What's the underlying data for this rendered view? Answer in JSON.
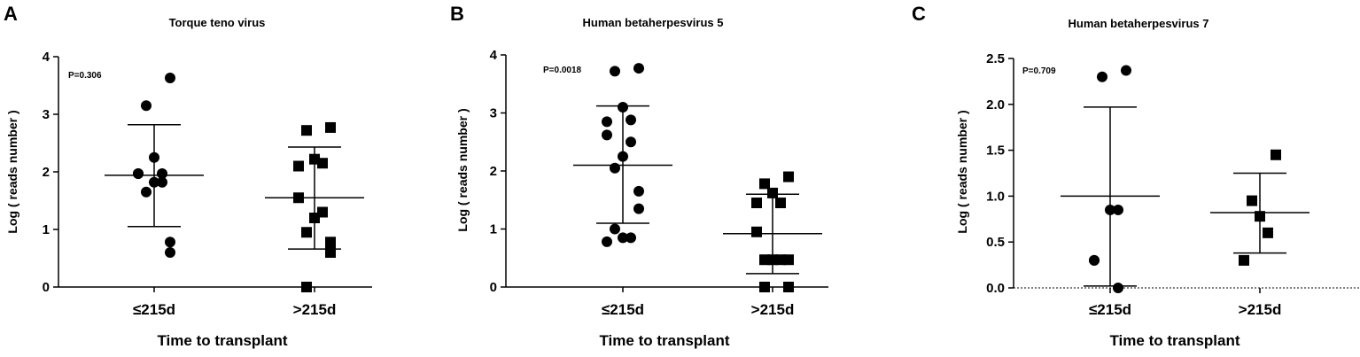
{
  "chart_data": [
    {
      "type": "scatter",
      "panel_letter": "A",
      "title": "Torque teno virus",
      "ylabel": "Log ( reads number )",
      "xlabel": "Time to transplant",
      "ylim": [
        0,
        4
      ],
      "yticks": [
        "0",
        "1",
        "2",
        "3",
        "4"
      ],
      "categories": [
        "≤215d",
        ">215d"
      ],
      "annotation": "P=0.306",
      "series": [
        {
          "marker": "circle",
          "values": [
            3.63,
            3.15,
            2.25,
            1.97,
            1.97,
            1.97,
            1.82,
            1.82,
            1.65,
            0.78,
            0.6
          ],
          "mean": 1.94,
          "sd_upper": 2.82,
          "sd_lower": 1.05
        },
        {
          "marker": "square",
          "values": [
            2.77,
            2.72,
            2.22,
            2.15,
            2.1,
            1.55,
            1.3,
            1.2,
            0.95,
            0.78,
            0.6,
            0.0
          ],
          "mean": 1.55,
          "sd_upper": 2.43,
          "sd_lower": 0.66
        }
      ]
    },
    {
      "type": "scatter",
      "panel_letter": "B",
      "title": "Human betaherpesvirus 5",
      "ylabel": "Log ( reads number )",
      "xlabel": "Time to transplant",
      "ylim": [
        0,
        4
      ],
      "yticks": [
        "0",
        "1",
        "2",
        "3",
        "4"
      ],
      "categories": [
        "≤215d",
        ">215d"
      ],
      "annotation": "P=0.0018",
      "series": [
        {
          "marker": "circle",
          "values": [
            3.77,
            3.72,
            3.1,
            2.88,
            2.85,
            2.62,
            2.5,
            2.25,
            2.05,
            1.65,
            1.35,
            1.0,
            0.85,
            0.85,
            0.78
          ],
          "mean": 2.1,
          "sd_upper": 3.12,
          "sd_lower": 1.1
        },
        {
          "marker": "square",
          "values": [
            1.9,
            1.78,
            1.62,
            1.45,
            1.45,
            0.95,
            0.47,
            0.47,
            0.47,
            0.47,
            0.0,
            0.0
          ],
          "mean": 0.92,
          "sd_upper": 1.6,
          "sd_lower": 0.23
        }
      ]
    },
    {
      "type": "scatter",
      "panel_letter": "C",
      "title": "Human betaherpesvirus 7",
      "ylabel": "Log ( reads number )",
      "xlabel": "Time to transplant",
      "ylim": [
        0,
        2.5
      ],
      "yticks": [
        "0.0",
        "0.5",
        "1.0",
        "1.5",
        "2.0",
        "2.5"
      ],
      "categories": [
        "≤215d",
        ">215d"
      ],
      "annotation": "P=0.709",
      "series": [
        {
          "marker": "circle",
          "values": [
            2.37,
            2.3,
            0.85,
            0.85,
            0.3,
            0.3,
            0.0
          ],
          "mean": 1.0,
          "sd_upper": 1.97,
          "sd_lower": 0.02
        },
        {
          "marker": "square",
          "values": [
            1.45,
            0.95,
            0.78,
            0.6,
            0.3
          ],
          "mean": 0.82,
          "sd_upper": 1.25,
          "sd_lower": 0.38
        }
      ]
    }
  ]
}
